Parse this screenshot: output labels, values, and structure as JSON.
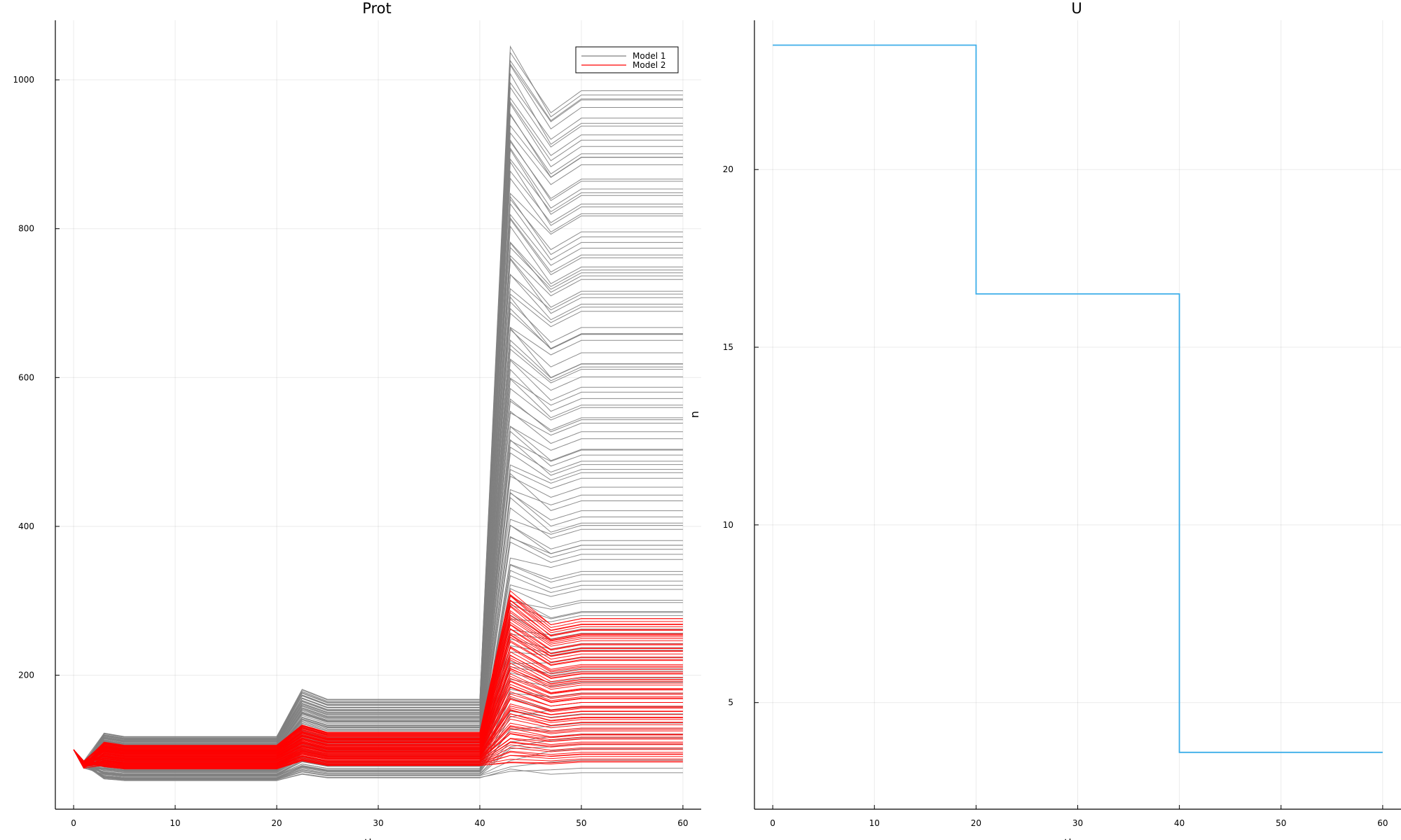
{
  "chart_data": [
    {
      "type": "line",
      "title": "Prot",
      "xlabel": "time",
      "ylabel": "",
      "xlim": [
        -1.8,
        61.8
      ],
      "ylim": [
        20,
        1080
      ],
      "xticks": [
        0,
        10,
        20,
        30,
        40,
        50,
        60
      ],
      "yticks": [
        200,
        400,
        600,
        800,
        1000
      ],
      "grid": true,
      "legend_position": "top-right",
      "series_description": "Many simulated trajectories per model; 0.5 time steps, piecewise phases at t=0, 20, 40",
      "series": [
        {
          "name": "Model 1",
          "color": "#808080",
          "trajectories": 120,
          "initial": 100,
          "phase1_range": [
            58,
            118
          ],
          "phase2_range": [
            62,
            168
          ],
          "phase3_range": [
            65,
            1048
          ],
          "final_range": [
            68,
            992
          ]
        },
        {
          "name": "Model 2",
          "color": "#ff0000",
          "trajectories": 80,
          "initial": 100,
          "phase1_range": [
            74,
            106
          ],
          "phase2_range": [
            78,
            124
          ],
          "phase3_range": [
            80,
            315
          ],
          "final_range": [
            82,
            278
          ]
        }
      ]
    },
    {
      "type": "line",
      "title": "U",
      "xlabel": "time",
      "ylabel": "u",
      "xlim": [
        -1.8,
        61.8
      ],
      "ylim": [
        2.0,
        24.2
      ],
      "xticks": [
        0,
        10,
        20,
        30,
        40,
        50,
        60
      ],
      "yticks": [
        5,
        10,
        15,
        20
      ],
      "grid": true,
      "series": [
        {
          "name": "",
          "color": "#3daee9",
          "step": true,
          "x": [
            0,
            20,
            20,
            40,
            40,
            60
          ],
          "y": [
            23.5,
            23.5,
            16.5,
            16.5,
            3.6,
            3.6
          ]
        }
      ]
    }
  ]
}
